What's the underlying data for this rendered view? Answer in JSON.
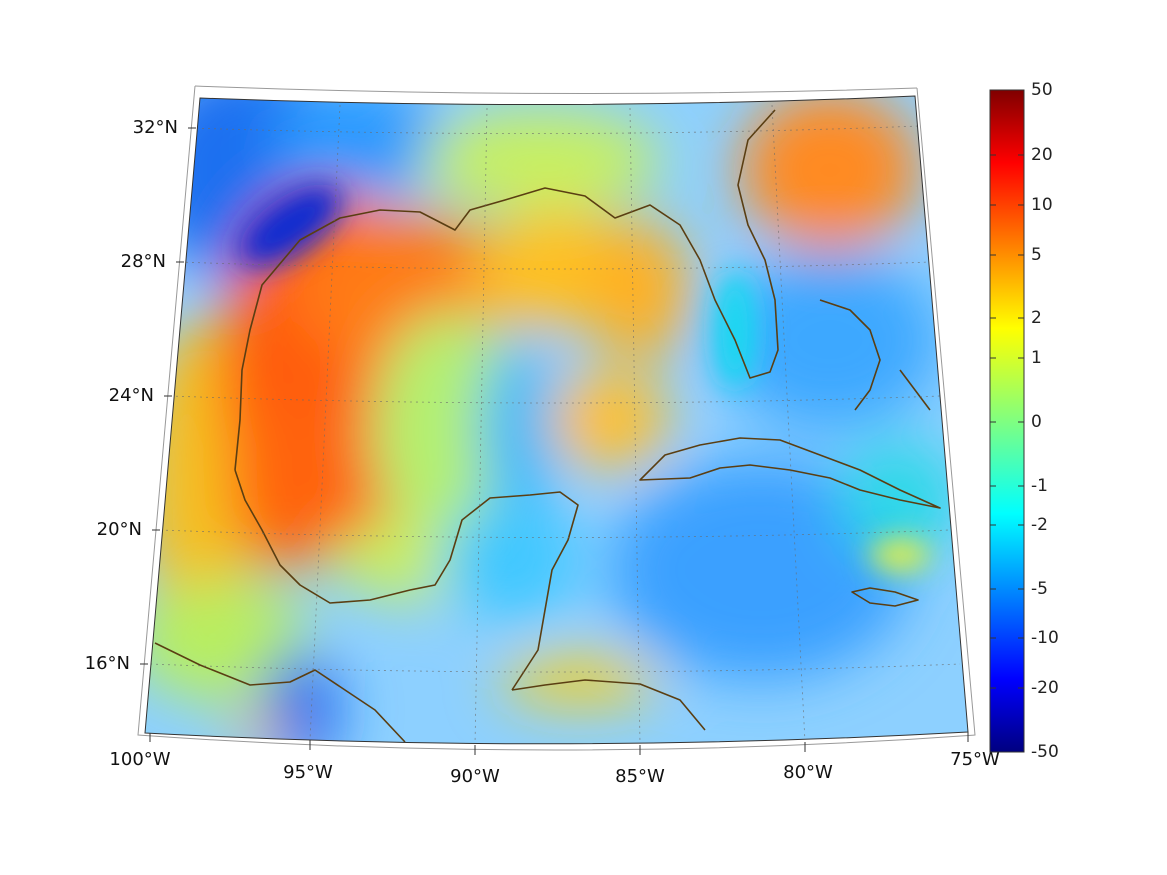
{
  "map": {
    "region": "Gulf of Mexico and Caribbean",
    "lon_labels": [
      "100°W",
      "95°W",
      "90°W",
      "85°W",
      "80°W",
      "75°W"
    ],
    "lat_labels": [
      "32°N",
      "28°N",
      "24°N",
      "20°N",
      "16°N"
    ],
    "coastline_color": "#5a3e12",
    "grid": true
  },
  "colorbar": {
    "colormap": "jet",
    "tick_labels": [
      "50",
      "20",
      "10",
      "5",
      "2",
      "1",
      "0",
      "-1",
      "-2",
      "-5",
      "-10",
      "-20",
      "-50"
    ],
    "colors": [
      "#800000",
      "#ff0000",
      "#ff8000",
      "#ffff00",
      "#80ff80",
      "#00ffff",
      "#0080ff",
      "#0000ff",
      "#000080"
    ]
  }
}
